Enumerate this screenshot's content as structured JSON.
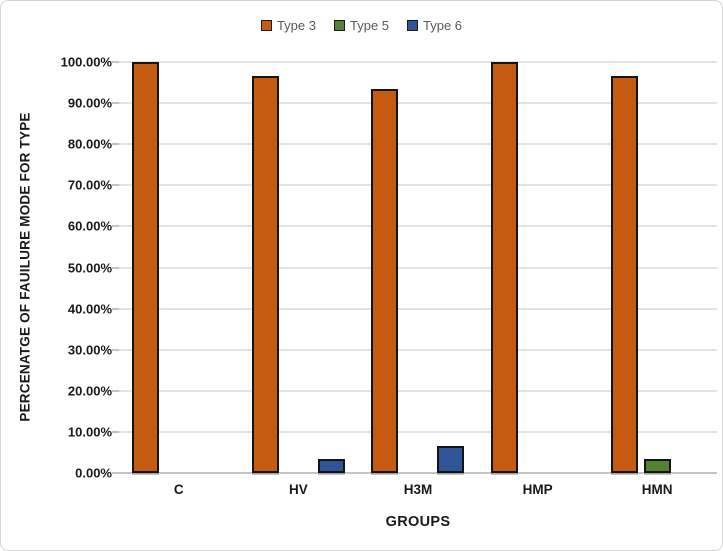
{
  "figure": {
    "background": "#ffffff",
    "border_color": "#d4d4d4"
  },
  "chart_data": {
    "type": "bar",
    "title": "",
    "categories": [
      "C",
      "HV",
      "H3M",
      "HMP",
      "HMN"
    ],
    "series": [
      {
        "name": "Type 3",
        "color": "#C55A11",
        "values": [
          100.0,
          96.67,
          93.33,
          100.0,
          96.67
        ]
      },
      {
        "name": "Type 5",
        "color": "#538135",
        "values": [
          0,
          0,
          0,
          0,
          3.33
        ]
      },
      {
        "name": "Type 6",
        "color": "#2F5597",
        "values": [
          0,
          3.33,
          6.67,
          0,
          0
        ]
      }
    ],
    "xlabel": "GROUPS",
    "ylabel": "PERCENATGE OF FAUILURE MODE FOR TYPE",
    "ylim": [
      0,
      100
    ],
    "ytick_labels": [
      "0.00%",
      "10.00%",
      "20.00%",
      "30.00%",
      "40.00%",
      "50.00%",
      "60.00%",
      "70.00%",
      "80.00%",
      "90.00%",
      "100.00%"
    ],
    "grid": true,
    "legend_position": "top",
    "colors": {
      "gridline": "#e2e2e2",
      "axis_line": "#c4c4c4",
      "bar_border": "#141414",
      "legend_text": "#595959",
      "axis_text": "#191919"
    }
  }
}
